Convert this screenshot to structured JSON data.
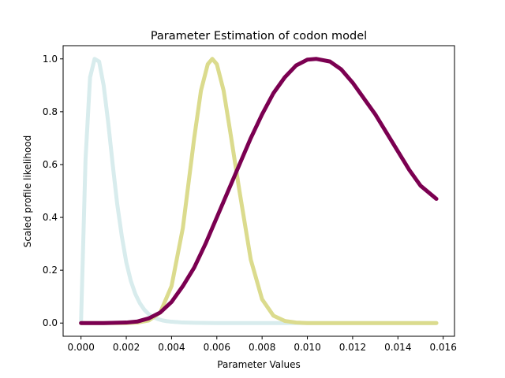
{
  "chart_data": {
    "type": "line",
    "title": "Parameter Estimation of codon model",
    "xlabel": "Parameter Values",
    "ylabel": "Scaled profile likelihood",
    "xlim": [
      -0.00079,
      0.0165
    ],
    "ylim": [
      -0.05,
      1.05
    ],
    "x_ticks": [
      0.0,
      0.002,
      0.004,
      0.006,
      0.008,
      0.01,
      0.012,
      0.014,
      0.016
    ],
    "x_tick_labels": [
      "0.000",
      "0.002",
      "0.004",
      "0.006",
      "0.008",
      "0.010",
      "0.012",
      "0.014",
      "0.016"
    ],
    "y_ticks": [
      0.0,
      0.2,
      0.4,
      0.6,
      0.8,
      1.0
    ],
    "y_tick_labels": [
      "0.0",
      "0.2",
      "0.4",
      "0.6",
      "0.8",
      "1.0"
    ],
    "grid": false,
    "series": [
      {
        "color": "#d8eced",
        "x": [
          0.0,
          0.0002,
          0.0004,
          0.0006,
          0.0008,
          0.001,
          0.0012,
          0.0014,
          0.0016,
          0.0018,
          0.002,
          0.0022,
          0.0024,
          0.0026,
          0.0028,
          0.003,
          0.0032,
          0.0034,
          0.0036,
          0.0038,
          0.004,
          0.0045,
          0.005,
          0.006,
          0.008,
          0.01,
          0.012,
          0.014,
          0.0157
        ],
        "y": [
          0.0,
          0.62,
          0.93,
          1.0,
          0.99,
          0.9,
          0.76,
          0.6,
          0.45,
          0.33,
          0.23,
          0.16,
          0.11,
          0.075,
          0.05,
          0.033,
          0.022,
          0.015,
          0.01,
          0.007,
          0.005,
          0.002,
          0.001,
          0.0,
          0.0,
          0.0,
          0.0,
          0.0,
          0.0
        ]
      },
      {
        "color": "#dbdb8d",
        "x": [
          0.0,
          0.001,
          0.002,
          0.0025,
          0.003,
          0.0035,
          0.004,
          0.0045,
          0.005,
          0.0053,
          0.0056,
          0.0058,
          0.006,
          0.0063,
          0.0066,
          0.007,
          0.0075,
          0.008,
          0.0085,
          0.009,
          0.0095,
          0.01,
          0.011,
          0.012,
          0.014,
          0.0157
        ],
        "y": [
          0.0,
          0.0,
          0.0,
          0.002,
          0.01,
          0.04,
          0.14,
          0.36,
          0.7,
          0.88,
          0.98,
          1.0,
          0.98,
          0.88,
          0.72,
          0.5,
          0.24,
          0.09,
          0.028,
          0.008,
          0.002,
          0.0,
          0.0,
          0.0,
          0.0,
          0.0
        ]
      },
      {
        "color": "#7b0051",
        "x": [
          0.0,
          0.001,
          0.002,
          0.0025,
          0.003,
          0.0035,
          0.004,
          0.0045,
          0.005,
          0.0055,
          0.006,
          0.0065,
          0.007,
          0.0075,
          0.008,
          0.0085,
          0.009,
          0.0095,
          0.01,
          0.0104,
          0.011,
          0.0115,
          0.012,
          0.0125,
          0.013,
          0.0135,
          0.014,
          0.0145,
          0.015,
          0.0157
        ],
        "y": [
          0.0,
          0.0,
          0.002,
          0.006,
          0.018,
          0.04,
          0.08,
          0.14,
          0.21,
          0.3,
          0.4,
          0.5,
          0.6,
          0.7,
          0.79,
          0.87,
          0.93,
          0.975,
          0.997,
          1.0,
          0.99,
          0.96,
          0.91,
          0.85,
          0.79,
          0.72,
          0.65,
          0.58,
          0.52,
          0.47
        ]
      }
    ]
  }
}
